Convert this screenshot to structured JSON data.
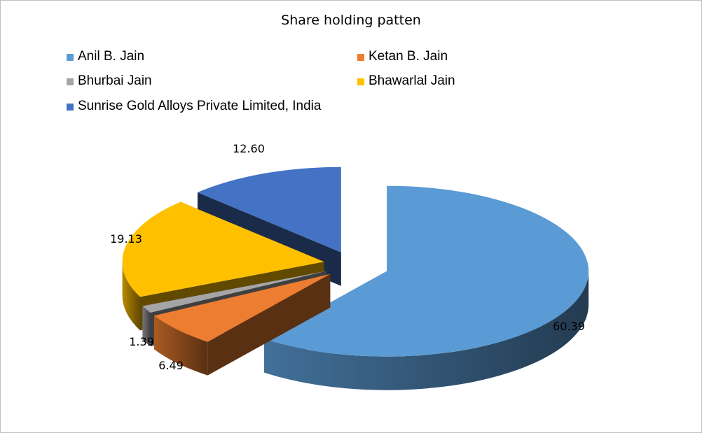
{
  "chart_data": {
    "type": "pie",
    "title": "Share holding patten",
    "legend_position": "top",
    "exploded": true,
    "three_d": true,
    "slices": [
      {
        "name": "Anil B. Jain",
        "value": 60.39,
        "label": "60.39",
        "color": "#5B9BD5"
      },
      {
        "name": "Ketan B. Jain",
        "value": 6.49,
        "label": "6.49",
        "color": "#ED7D31"
      },
      {
        "name": "Bhurbai Jain",
        "value": 1.39,
        "label": "1.39",
        "color": "#A5A5A5"
      },
      {
        "name": "Bhawarlal Jain",
        "value": 19.13,
        "label": "19.13",
        "color": "#FFC000"
      },
      {
        "name": "Sunrise Gold Alloys Private Limited, India",
        "value": 12.6,
        "label": "12.60",
        "color": "#4472C4"
      }
    ]
  }
}
